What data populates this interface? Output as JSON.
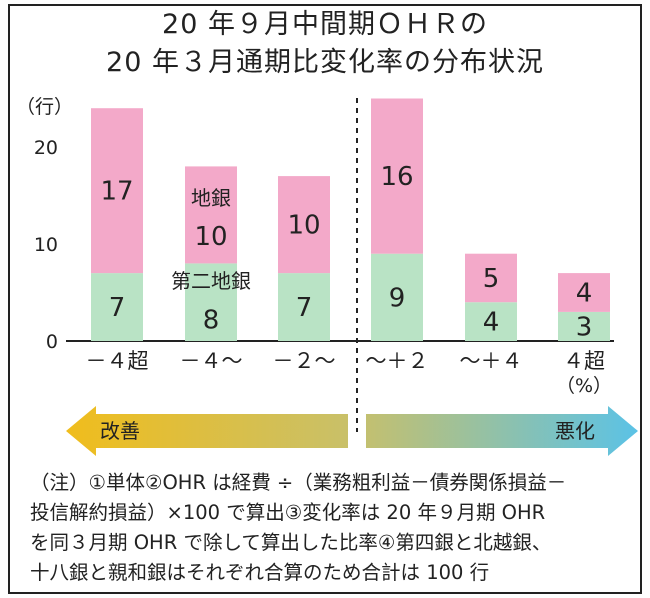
{
  "title_line1": "20 年９月中間期ＯＨＲの",
  "title_line2": "20 年３月通期比変化率の分布状況",
  "chart_data": {
    "type": "bar",
    "stacked": true,
    "categories": [
      "－４超",
      "－４～",
      "－２～",
      "～＋２",
      "～＋４",
      "４超"
    ],
    "series": [
      {
        "name": "第二地銀",
        "values": [
          7,
          8,
          7,
          9,
          4,
          3
        ],
        "color": "#b9e3c5"
      },
      {
        "name": "地銀",
        "values": [
          17,
          10,
          10,
          16,
          5,
          4
        ],
        "color": "#f3a9c9"
      }
    ],
    "yunit": "（行）",
    "xunit": "（%）",
    "yticks": [
      0,
      10,
      20
    ],
    "ylim": [
      0,
      25
    ]
  },
  "arrows": {
    "left_label": "改善",
    "right_label": "悪化",
    "left_color": "#f0bd1c",
    "right_color": "#5bc2e6"
  },
  "note_lines": [
    "（注）①単体②OHR は経費 ÷（業務粗利益－債券関係損益－",
    "投信解約損益）×100 で算出③変化率は 20 年９月期 OHR",
    "を同３月期 OHR で除して算出した比率④第四銀と北越銀、",
    "十八銀と親和銀はそれぞれ合算のため合計は 100 行"
  ]
}
